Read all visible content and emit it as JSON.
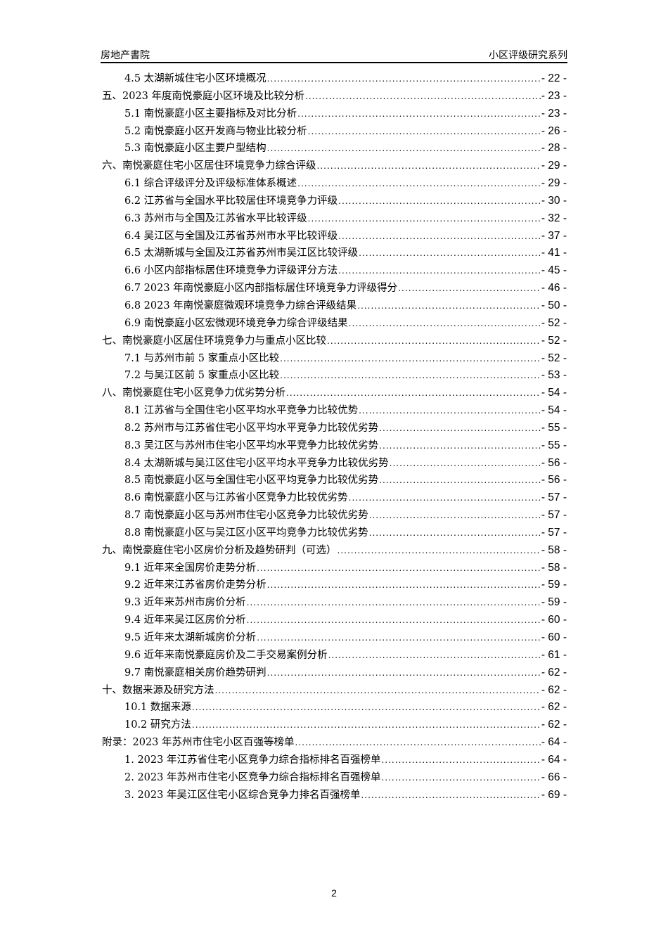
{
  "header": {
    "left": "房地产書院",
    "right": "小区评级研究系列"
  },
  "toc": [
    {
      "level": 2,
      "title": "4.5 太湖新城住宅小区环境概况",
      "page": "- 22 -"
    },
    {
      "level": 1,
      "title": "五、2023 年度南悦豪庭小区环境及比较分析",
      "page": "- 23 -"
    },
    {
      "level": 2,
      "title": "5.1 南悦豪庭小区主要指标及对比分析",
      "page": "- 23 -"
    },
    {
      "level": 2,
      "title": "5.2 南悦豪庭小区开发商与物业比较分析",
      "page": "- 26 -"
    },
    {
      "level": 2,
      "title": "5.3 南悦豪庭小区主要户型结构",
      "page": "- 28 -"
    },
    {
      "level": 1,
      "title": "六、南悦豪庭住宅小区居住环境竞争力综合评级",
      "page": "- 29 -"
    },
    {
      "level": 2,
      "title": "6.1 综合评级评分及评级标准体系概述",
      "page": "- 29 -"
    },
    {
      "level": 2,
      "title": "6.2 江苏省与全国水平比较居住环境竞争力评级",
      "page": "- 30 -"
    },
    {
      "level": 2,
      "title": "6.3 苏州市与全国及江苏省水平比较评级",
      "page": "- 32 -"
    },
    {
      "level": 2,
      "title": "6.4 吴江区与全国及江苏省苏州市水平比较评级",
      "page": "- 37 -"
    },
    {
      "level": 2,
      "title": "6.5 太湖新城与全国及江苏省苏州市吴江区比较评级",
      "page": "- 41 -"
    },
    {
      "level": 2,
      "title": "6.6 小区内部指标居住环境竞争力评级评分方法",
      "page": "- 45 -"
    },
    {
      "level": 2,
      "title": "6.7 2023 年南悦豪庭小区内部指标居住环境竞争力评级得分",
      "page": "- 46 -"
    },
    {
      "level": 2,
      "title": "6.8 2023 年南悦豪庭微观环境竞争力综合评级结果",
      "page": "- 50 -"
    },
    {
      "level": 2,
      "title": "6.9 南悦豪庭小区宏微观环境竞争力综合评级结果",
      "page": "- 52 -"
    },
    {
      "level": 1,
      "title": "七、南悦豪庭小区居住环境竞争力与重点小区比较",
      "page": "- 52 -"
    },
    {
      "level": 2,
      "title": "7.1 与苏州市前 5 家重点小区比较",
      "page": "- 52 -"
    },
    {
      "level": 2,
      "title": "7.2 与吴江区前 5 家重点小区比较",
      "page": "- 53 -"
    },
    {
      "level": 1,
      "title": "八、南悦豪庭住宅小区竞争力优劣势分析",
      "page": "- 54 -"
    },
    {
      "level": 2,
      "title": "8.1 江苏省与全国住宅小区平均水平竞争力比较优势",
      "page": "- 54 -"
    },
    {
      "level": 2,
      "title": "8.2 苏州市与江苏省住宅小区平均水平竞争力比较优劣势",
      "page": "- 55 -"
    },
    {
      "level": 2,
      "title": "8.3 吴江区与苏州市住宅小区平均水平竞争力比较优劣势",
      "page": "- 55 -"
    },
    {
      "level": 2,
      "title": "8.4 太湖新城与吴江区住宅小区平均水平竞争力比较优劣势",
      "page": "- 56 -"
    },
    {
      "level": 2,
      "title": "8.5 南悦豪庭小区与全国住宅小区平均竞争力比较优劣势",
      "page": "- 56 -"
    },
    {
      "level": 2,
      "title": "8.6 南悦豪庭小区与江苏省小区竞争力比较优劣势",
      "page": "- 57 -"
    },
    {
      "level": 2,
      "title": "8.7 南悦豪庭小区与苏州市住宅小区竞争力比较优劣势",
      "page": "- 57 -"
    },
    {
      "level": 2,
      "title": "8.8 南悦豪庭小区与吴江区小区平均竞争力比较优劣势",
      "page": "- 57 -"
    },
    {
      "level": 1,
      "title": "九、南悦豪庭住宅小区房价分析及趋势研判（可选）",
      "page": "- 58 -"
    },
    {
      "level": 2,
      "title": "9.1 近年来全国房价走势分析",
      "page": "- 58 -"
    },
    {
      "level": 2,
      "title": "9.2 近年来江苏省房价走势分析",
      "page": "- 59 -"
    },
    {
      "level": 2,
      "title": "9.3 近年来苏州市房价分析",
      "page": "- 59 -"
    },
    {
      "level": 2,
      "title": "9.4 近年来吴江区房价分析",
      "page": "- 60 -"
    },
    {
      "level": 2,
      "title": "9.5 近年来太湖新城房价分析",
      "page": "- 60 -"
    },
    {
      "level": 2,
      "title": "9.6 近年来南悦豪庭房价及二手交易案例分析",
      "page": "- 61 -"
    },
    {
      "level": 2,
      "title": "9.7 南悦豪庭相关房价趋势研判",
      "page": "- 62 -"
    },
    {
      "level": 1,
      "title": "十、数据来源及研究方法",
      "page": "- 62 -"
    },
    {
      "level": 2,
      "title": "10.1 数据来源",
      "page": "- 62 -"
    },
    {
      "level": 2,
      "title": "10.2 研究方法",
      "page": "- 62 -"
    },
    {
      "level": 1,
      "title": "附录：2023 年苏州市住宅小区百强等榜单",
      "page": "- 64 -"
    },
    {
      "level": 2,
      "title": "1. 2023 年江苏省住宅小区竞争力综合指标排名百强榜单",
      "page": "- 64 -"
    },
    {
      "level": 2,
      "title": "2. 2023 年苏州市住宅小区竞争力综合指标排名百强榜单",
      "page": "- 66 -"
    },
    {
      "level": 2,
      "title": "3. 2023 年吴江区住宅小区综合竞争力排名百强榜单",
      "page": "- 69 -"
    }
  ],
  "footer": {
    "page_number": "2"
  }
}
